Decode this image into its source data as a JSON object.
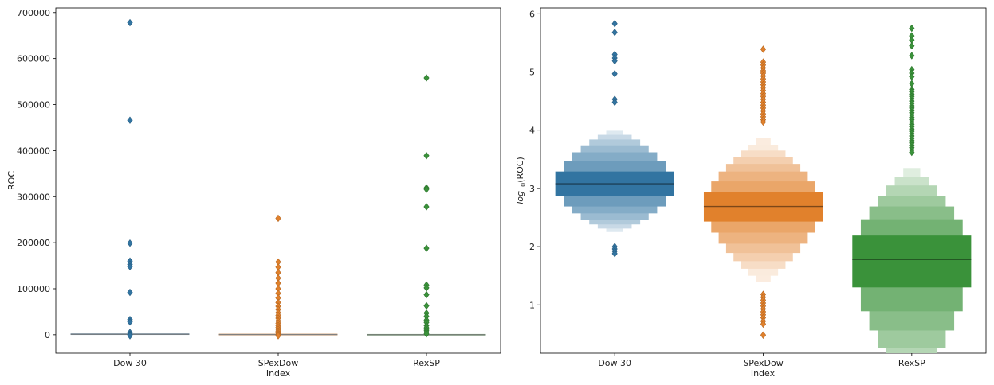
{
  "chart_data": [
    {
      "type": "boxen",
      "categories": [
        "Dow 30",
        "SPexDow",
        "RexSP"
      ],
      "colors": [
        "#3274a1",
        "#e1812c",
        "#3a923a"
      ],
      "xlabel": "Index",
      "ylabel": "ROC",
      "ylim": [
        -40000,
        710000
      ],
      "yticks": [
        0,
        100000,
        200000,
        300000,
        400000,
        500000,
        600000,
        700000
      ],
      "ytick_labels": [
        "0",
        "100000",
        "200000",
        "300000",
        "400000",
        "500000",
        "600000",
        "700000"
      ],
      "medians": [
        1200,
        480,
        60
      ],
      "outliers": [
        [
          678000,
          466000,
          199000,
          160000,
          153000,
          148000,
          92000,
          33000,
          28000,
          5000,
          1000,
          -2000
        ],
        [
          253000,
          158000,
          147000,
          135000,
          123000,
          112000,
          100000,
          90000,
          80000,
          70000,
          62000,
          55000,
          48000,
          42000,
          36000,
          30000,
          25000,
          20000,
          16000,
          12000,
          8000,
          4000,
          1000,
          -2000
        ],
        [
          558000,
          389000,
          319000,
          316000,
          278000,
          188000,
          108000,
          102000,
          87000,
          63000,
          47000,
          40000,
          32000,
          27000,
          20000,
          15000,
          10000,
          6000,
          2000
        ]
      ]
    },
    {
      "type": "boxen",
      "categories": [
        "Dow 30",
        "SPexDow",
        "RexSP"
      ],
      "colors": [
        "#3274a1",
        "#e1812c",
        "#3a923a"
      ],
      "xlabel": "Index",
      "ylabel_prefix": "log",
      "ylabel_sub": "10",
      "ylabel_suffix": "(ROC)",
      "ylim": [
        0.17,
        6.1
      ],
      "yticks": [
        1,
        2,
        3,
        4,
        5,
        6
      ],
      "ytick_labels": [
        "1",
        "2",
        "3",
        "4",
        "5",
        "6"
      ],
      "medians": [
        3.08,
        2.69,
        1.78
      ],
      "boxes": [
        [
          [
            2.87,
            3.29
          ],
          [
            2.69,
            3.47
          ],
          [
            2.57,
            3.62
          ],
          [
            2.46,
            3.74
          ],
          [
            2.38,
            3.84
          ],
          [
            2.31,
            3.92
          ],
          [
            2.25,
            3.99
          ]
        ],
        [
          [
            2.43,
            2.93
          ],
          [
            2.24,
            3.12
          ],
          [
            2.05,
            3.29
          ],
          [
            1.89,
            3.42
          ],
          [
            1.75,
            3.54
          ],
          [
            1.62,
            3.65
          ],
          [
            1.5,
            3.75
          ],
          [
            1.4,
            3.86
          ]
        ],
        [
          [
            1.3,
            2.19
          ],
          [
            0.89,
            2.47
          ],
          [
            0.56,
            2.69
          ],
          [
            0.26,
            2.87
          ],
          [
            0.17,
            3.05
          ],
          [
            0.17,
            3.2
          ],
          [
            0.17,
            3.35
          ]
        ]
      ],
      "outliers": [
        [
          5.83,
          5.68,
          5.3,
          5.24,
          5.19,
          4.97,
          4.53,
          4.48,
          2.0,
          1.96,
          1.92,
          1.88
        ],
        [
          5.39,
          5.17,
          5.12,
          5.07,
          5.02,
          4.98,
          4.93,
          4.88,
          4.83,
          4.78,
          4.73,
          4.68,
          4.63,
          4.58,
          4.53,
          4.48,
          4.43,
          4.38,
          4.33,
          4.28,
          4.23,
          4.18,
          4.14,
          1.18,
          1.13,
          1.08,
          1.03,
          0.98,
          0.93,
          0.88,
          0.83,
          0.78,
          0.72,
          0.67,
          0.48
        ],
        [
          5.75,
          5.62,
          5.55,
          5.45,
          5.28,
          5.04,
          4.98,
          4.92,
          4.8,
          4.7,
          4.66,
          4.62,
          4.58,
          4.54,
          4.5,
          4.46,
          4.42,
          4.38,
          4.34,
          4.3,
          4.26,
          4.22,
          4.18,
          4.14,
          4.1,
          4.06,
          4.02,
          3.98,
          3.94,
          3.9,
          3.86,
          3.82,
          3.78,
          3.74,
          3.7,
          3.66,
          3.62
        ]
      ]
    }
  ]
}
